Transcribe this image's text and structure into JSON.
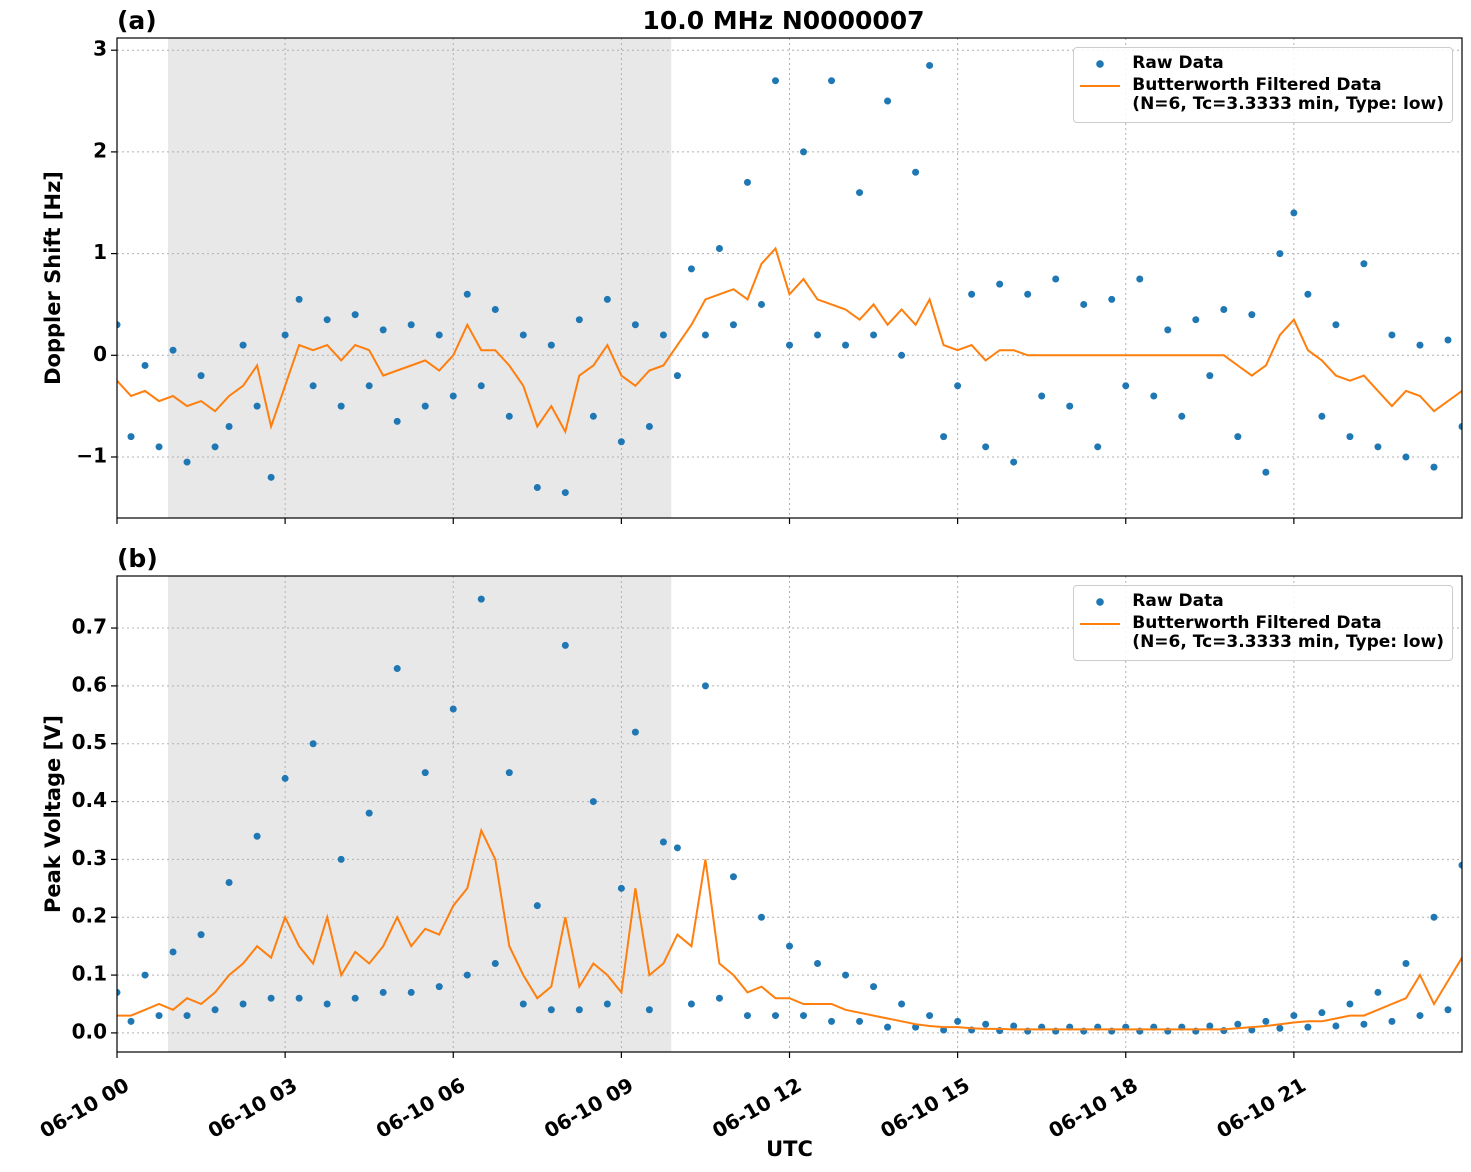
{
  "chart_data": [
    {
      "type": "line",
      "panel_label": "(a)",
      "title": "10.0 MHz N0000007",
      "ylabel": "Doppler Shift [Hz]",
      "x": [
        0,
        0.25,
        0.5,
        0.75,
        1,
        1.25,
        1.5,
        1.75,
        2,
        2.25,
        2.5,
        2.75,
        3,
        3.25,
        3.5,
        3.75,
        4,
        4.25,
        4.5,
        4.75,
        5,
        5.25,
        5.5,
        5.75,
        6,
        6.25,
        6.5,
        6.75,
        7,
        7.25,
        7.5,
        7.75,
        8,
        8.25,
        8.5,
        8.75,
        9,
        9.25,
        9.5,
        9.75,
        10,
        10.25,
        10.5,
        10.75,
        11,
        11.25,
        11.5,
        11.75,
        12,
        12.25,
        12.5,
        12.75,
        13,
        13.25,
        13.5,
        13.75,
        14,
        14.25,
        14.5,
        14.75,
        15,
        15.25,
        15.5,
        15.75,
        16,
        16.25,
        16.5,
        16.75,
        17,
        17.25,
        17.5,
        17.75,
        18,
        18.25,
        18.5,
        18.75,
        19,
        19.25,
        19.5,
        19.75,
        20,
        20.25,
        20.5,
        20.75,
        21,
        21.25,
        21.5,
        21.75,
        22,
        22.25,
        22.5,
        22.75,
        23,
        23.25,
        23.5,
        23.75,
        24
      ],
      "series": [
        {
          "name": "Raw Data",
          "style": "markers",
          "color": "#1f77b4",
          "values": [
            0.3,
            -0.8,
            -0.1,
            -0.9,
            0.05,
            -1.05,
            -0.2,
            -0.9,
            -0.7,
            0.1,
            -0.5,
            -1.2,
            0.2,
            0.55,
            -0.3,
            0.35,
            -0.5,
            0.4,
            -0.3,
            0.25,
            -0.65,
            0.3,
            -0.5,
            0.2,
            -0.4,
            0.6,
            -0.3,
            0.45,
            -0.6,
            0.2,
            -1.3,
            0.1,
            -1.35,
            0.35,
            -0.6,
            0.55,
            -0.85,
            0.3,
            -0.7,
            0.2,
            -0.2,
            0.85,
            0.2,
            1.05,
            0.3,
            1.7,
            0.5,
            2.7,
            0.1,
            2.0,
            0.2,
            2.7,
            0.1,
            1.6,
            0.2,
            2.5,
            0.0,
            1.8,
            2.85,
            -0.8,
            -0.3,
            0.6,
            -0.9,
            0.7,
            -1.05,
            0.6,
            -0.4,
            0.75,
            -0.5,
            0.5,
            -0.9,
            0.55,
            -0.3,
            0.75,
            -0.4,
            0.25,
            -0.6,
            0.35,
            -0.2,
            0.45,
            -0.8,
            0.4,
            -1.15,
            1.0,
            1.4,
            0.6,
            -0.6,
            0.3,
            -0.8,
            0.9,
            -0.9,
            0.2,
            -1.0,
            0.1,
            -1.1,
            0.15,
            -0.7
          ]
        },
        {
          "name": "Butterworth Filtered Data\n(N=6, Tc=3.3333 min, Type: low)",
          "style": "line",
          "color": "#ff7f0e",
          "values": [
            -0.25,
            -0.4,
            -0.35,
            -0.45,
            -0.4,
            -0.5,
            -0.45,
            -0.55,
            -0.4,
            -0.3,
            -0.1,
            -0.7,
            -0.3,
            0.1,
            0.05,
            0.1,
            -0.05,
            0.1,
            0.05,
            -0.2,
            -0.15,
            -0.1,
            -0.05,
            -0.15,
            0.0,
            0.3,
            0.05,
            0.05,
            -0.1,
            -0.3,
            -0.7,
            -0.5,
            -0.75,
            -0.2,
            -0.1,
            0.1,
            -0.2,
            -0.3,
            -0.15,
            -0.1,
            0.1,
            0.3,
            0.55,
            0.6,
            0.65,
            0.55,
            0.9,
            1.05,
            0.6,
            0.75,
            0.55,
            0.5,
            0.45,
            0.35,
            0.5,
            0.3,
            0.45,
            0.3,
            0.55,
            0.1,
            0.05,
            0.1,
            -0.05,
            0.05,
            0.05,
            0,
            0,
            0,
            0,
            0,
            0,
            0,
            0,
            0,
            0,
            0,
            0,
            0,
            0,
            0,
            -0.1,
            -0.2,
            -0.1,
            0.2,
            0.35,
            0.05,
            -0.05,
            -0.2,
            -0.25,
            -0.2,
            -0.35,
            -0.5,
            -0.35,
            -0.4,
            -0.55,
            -0.45,
            -0.35
          ]
        }
      ],
      "xlim": [
        0,
        24
      ],
      "xticks": [
        0,
        3,
        6,
        9,
        12,
        15,
        18,
        21
      ],
      "show_xtick_labels": false,
      "ylim": [
        -1.6,
        3.12
      ],
      "yticks": [
        {
          "value": -1,
          "label": "−1"
        },
        0,
        1,
        2,
        3
      ],
      "shaded_spans": [
        [
          0.91,
          9.89
        ]
      ],
      "shade_color": "#e8e8e8",
      "grid": true,
      "legend": "upper right"
    },
    {
      "type": "line",
      "panel_label": "(b)",
      "ylabel": "Peak Voltage [V]",
      "xlabel": "UTC",
      "x": [
        0,
        0.25,
        0.5,
        0.75,
        1,
        1.25,
        1.5,
        1.75,
        2,
        2.25,
        2.5,
        2.75,
        3,
        3.25,
        3.5,
        3.75,
        4,
        4.25,
        4.5,
        4.75,
        5,
        5.25,
        5.5,
        5.75,
        6,
        6.25,
        6.5,
        6.75,
        7,
        7.25,
        7.5,
        7.75,
        8,
        8.25,
        8.5,
        8.75,
        9,
        9.25,
        9.5,
        9.75,
        10,
        10.25,
        10.5,
        10.75,
        11,
        11.25,
        11.5,
        11.75,
        12,
        12.25,
        12.5,
        12.75,
        13,
        13.25,
        13.5,
        13.75,
        14,
        14.25,
        14.5,
        14.75,
        15,
        15.25,
        15.5,
        15.75,
        16,
        16.25,
        16.5,
        16.75,
        17,
        17.25,
        17.5,
        17.75,
        18,
        18.25,
        18.5,
        18.75,
        19,
        19.25,
        19.5,
        19.75,
        20,
        20.25,
        20.5,
        20.75,
        21,
        21.25,
        21.5,
        21.75,
        22,
        22.25,
        22.5,
        22.75,
        23,
        23.25,
        23.5,
        23.75,
        24
      ],
      "series": [
        {
          "name": "Raw Data",
          "style": "markers",
          "color": "#1f77b4",
          "values": [
            0.07,
            0.02,
            0.1,
            0.03,
            0.14,
            0.03,
            0.17,
            0.04,
            0.26,
            0.05,
            0.34,
            0.06,
            0.44,
            0.06,
            0.5,
            0.05,
            0.3,
            0.06,
            0.38,
            0.07,
            0.63,
            0.07,
            0.45,
            0.08,
            0.56,
            0.1,
            0.75,
            0.12,
            0.45,
            0.05,
            0.22,
            0.04,
            0.67,
            0.04,
            0.4,
            0.05,
            0.25,
            0.52,
            0.04,
            0.33,
            0.32,
            0.05,
            0.6,
            0.06,
            0.27,
            0.03,
            0.2,
            0.03,
            0.15,
            0.03,
            0.12,
            0.02,
            0.1,
            0.02,
            0.08,
            0.01,
            0.05,
            0.01,
            0.03,
            0.005,
            0.02,
            0.005,
            0.015,
            0.004,
            0.012,
            0.003,
            0.01,
            0.003,
            0.01,
            0.003,
            0.01,
            0.003,
            0.01,
            0.003,
            0.01,
            0.003,
            0.01,
            0.003,
            0.012,
            0.004,
            0.015,
            0.005,
            0.02,
            0.008,
            0.03,
            0.01,
            0.035,
            0.012,
            0.05,
            0.015,
            0.07,
            0.02,
            0.12,
            0.03,
            0.2,
            0.04,
            0.29
          ]
        },
        {
          "name": "Butterworth Filtered Data\n(N=6, Tc=3.3333 min, Type: low)",
          "style": "line",
          "color": "#ff7f0e",
          "values": [
            0.03,
            0.03,
            0.04,
            0.05,
            0.04,
            0.06,
            0.05,
            0.07,
            0.1,
            0.12,
            0.15,
            0.13,
            0.2,
            0.15,
            0.12,
            0.2,
            0.1,
            0.14,
            0.12,
            0.15,
            0.2,
            0.15,
            0.18,
            0.17,
            0.22,
            0.25,
            0.35,
            0.3,
            0.15,
            0.1,
            0.06,
            0.08,
            0.2,
            0.08,
            0.12,
            0.1,
            0.07,
            0.25,
            0.1,
            0.12,
            0.17,
            0.15,
            0.3,
            0.12,
            0.1,
            0.07,
            0.08,
            0.06,
            0.06,
            0.05,
            0.05,
            0.05,
            0.04,
            0.035,
            0.03,
            0.025,
            0.02,
            0.015,
            0.012,
            0.01,
            0.01,
            0.008,
            0.007,
            0.007,
            0.006,
            0.006,
            0.006,
            0.006,
            0.006,
            0.006,
            0.006,
            0.006,
            0.006,
            0.006,
            0.006,
            0.006,
            0.006,
            0.006,
            0.006,
            0.006,
            0.008,
            0.01,
            0.012,
            0.015,
            0.018,
            0.02,
            0.02,
            0.025,
            0.03,
            0.03,
            0.04,
            0.05,
            0.06,
            0.1,
            0.05,
            0.09,
            0.13
          ]
        }
      ],
      "xlim": [
        0,
        24
      ],
      "xticks": [
        {
          "value": 0,
          "label": "06-10 00"
        },
        {
          "value": 3,
          "label": "06-10 03"
        },
        {
          "value": 6,
          "label": "06-10 06"
        },
        {
          "value": 9,
          "label": "06-10 09"
        },
        {
          "value": 12,
          "label": "06-10 12"
        },
        {
          "value": 15,
          "label": "06-10 15"
        },
        {
          "value": 18,
          "label": "06-10 18"
        },
        {
          "value": 21,
          "label": "06-10 21"
        }
      ],
      "show_xtick_labels": true,
      "ylim": [
        -0.033,
        0.79
      ],
      "yticks": [
        {
          "value": 0,
          "label": "0.0"
        },
        0.1,
        0.2,
        0.3,
        0.4,
        0.5,
        0.6,
        0.7
      ],
      "shaded_spans": [
        [
          0.91,
          9.89
        ]
      ],
      "shade_color": "#e8e8e8",
      "grid": true,
      "legend": "upper right"
    }
  ]
}
